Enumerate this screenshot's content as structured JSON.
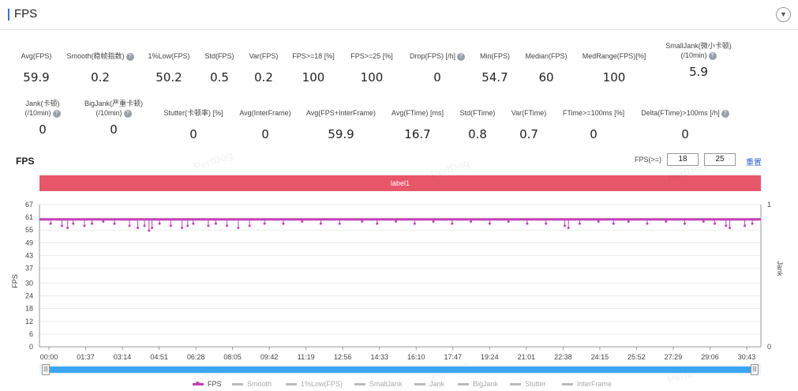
{
  "header": {
    "title": "FPS",
    "collapse_icon": "chevron-down-icon"
  },
  "metrics_row1": [
    {
      "label": "Avg(FPS)",
      "value": "59.9",
      "info": false
    },
    {
      "label": "Smooth(稳帧指数)",
      "value": "0.2",
      "info": true
    },
    {
      "label": "1%Low(FPS)",
      "value": "50.2",
      "info": false
    },
    {
      "label": "Std(FPS)",
      "value": "0.5",
      "info": false
    },
    {
      "label": "Var(FPS)",
      "value": "0.2",
      "info": false
    },
    {
      "label": "FPS>=18 [%]",
      "value": "100",
      "info": false
    },
    {
      "label": "FPS>=25 [%]",
      "value": "100",
      "info": false
    },
    {
      "label": "Drop(FPS) [/h]",
      "value": "0",
      "info": true
    },
    {
      "label": "Min(FPS)",
      "value": "54.7",
      "info": false
    },
    {
      "label": "Median(FPS)",
      "value": "60",
      "info": false
    },
    {
      "label": "MedRange(FPS)[%]",
      "value": "100",
      "info": false
    },
    {
      "label": "SmallJank(微小卡顿)",
      "label2": "(/10min)",
      "value": "5.9",
      "info": true
    }
  ],
  "metrics_row2": [
    {
      "label": "Jank(卡顿)",
      "label2": "(/10min)",
      "value": "0",
      "info": true
    },
    {
      "label": "BigJank(严重卡顿)",
      "label2": "(/10min)",
      "value": "0",
      "info": true
    },
    {
      "label": "Stutter(卡顿率) [%]",
      "value": "0",
      "info": false
    },
    {
      "label": "Avg(InterFrame)",
      "value": "0",
      "info": false
    },
    {
      "label": "Avg(FPS+InterFrame)",
      "value": "59.9",
      "info": false
    },
    {
      "label": "Avg(FTime) [ms]",
      "value": "16.7",
      "info": false
    },
    {
      "label": "Std(FTime)",
      "value": "0.8",
      "info": false
    },
    {
      "label": "Var(FTime)",
      "value": "0.7",
      "info": false
    },
    {
      "label": "FTime>=100ms [%]",
      "value": "0",
      "info": false
    },
    {
      "label": "Delta(FTime)>100ms [/h]",
      "value": "0",
      "info": true
    }
  ],
  "chart_section": {
    "title": "FPS",
    "threshold_label": "FPS(>=)",
    "threshold_1": "18",
    "threshold_2": "25",
    "reset_label": "重置",
    "label_bar": "label1",
    "watermark": "PerfDog"
  },
  "chart_data": {
    "type": "line",
    "ylabel": "FPS",
    "y2label": "Jank",
    "ylim": [
      0,
      67
    ],
    "y_ticks": [
      "0",
      "6",
      "12",
      "18",
      "24",
      "30",
      "37",
      "43",
      "49",
      "55",
      "61",
      "67"
    ],
    "y2_ticks": [
      "0",
      "1"
    ],
    "x_ticks": [
      "00:00",
      "01:37",
      "03:14",
      "04:51",
      "06:28",
      "08:05",
      "09:42",
      "11:19",
      "12:56",
      "14:33",
      "16:10",
      "17:47",
      "19:24",
      "21:01",
      "22:38",
      "24:15",
      "25:52",
      "27:29",
      "29:06",
      "30:43"
    ],
    "x_range_seconds": [
      0,
      1923
    ],
    "series": [
      {
        "name": "FPS",
        "baseline": 60,
        "dips": [
          [
            30,
            58
          ],
          [
            60,
            57
          ],
          [
            75,
            56
          ],
          [
            90,
            58
          ],
          [
            120,
            57
          ],
          [
            140,
            58
          ],
          [
            170,
            59
          ],
          [
            200,
            58
          ],
          [
            240,
            57
          ],
          [
            262,
            56
          ],
          [
            280,
            57
          ],
          [
            292,
            54.7
          ],
          [
            300,
            56
          ],
          [
            320,
            58
          ],
          [
            350,
            57
          ],
          [
            380,
            56
          ],
          [
            395,
            57
          ],
          [
            410,
            58
          ],
          [
            450,
            57
          ],
          [
            470,
            58
          ],
          [
            500,
            57
          ],
          [
            530,
            56
          ],
          [
            560,
            57
          ],
          [
            600,
            58
          ],
          [
            650,
            58
          ],
          [
            700,
            59
          ],
          [
            750,
            58
          ],
          [
            800,
            58
          ],
          [
            860,
            59
          ],
          [
            900,
            58
          ],
          [
            950,
            59
          ],
          [
            1000,
            58
          ],
          [
            1050,
            59
          ],
          [
            1100,
            58
          ],
          [
            1150,
            59
          ],
          [
            1200,
            58
          ],
          [
            1250,
            59
          ],
          [
            1300,
            58
          ],
          [
            1350,
            58
          ],
          [
            1400,
            57
          ],
          [
            1410,
            56
          ],
          [
            1440,
            58
          ],
          [
            1490,
            59
          ],
          [
            1530,
            58
          ],
          [
            1570,
            59
          ],
          [
            1620,
            58
          ],
          [
            1670,
            59
          ],
          [
            1720,
            58
          ],
          [
            1770,
            59
          ],
          [
            1800,
            58
          ],
          [
            1830,
            57
          ],
          [
            1840,
            56
          ],
          [
            1880,
            57
          ],
          [
            1900,
            58
          ]
        ]
      }
    ],
    "legend": [
      {
        "name": "FPS",
        "active": true
      },
      {
        "name": "Smooth",
        "active": false
      },
      {
        "name": "1%Low(FPS)",
        "active": false
      },
      {
        "name": "SmallJank",
        "active": false
      },
      {
        "name": "Jank",
        "active": false
      },
      {
        "name": "BigJank",
        "active": false
      },
      {
        "name": "Stutter",
        "active": false
      },
      {
        "name": "InterFrame",
        "active": false
      }
    ],
    "grid": true,
    "colors": {
      "fps": "#c53fb8",
      "label_bar": "#e8566a",
      "scroll": "#3aa6f0",
      "accent": "#3f6fe0"
    }
  }
}
